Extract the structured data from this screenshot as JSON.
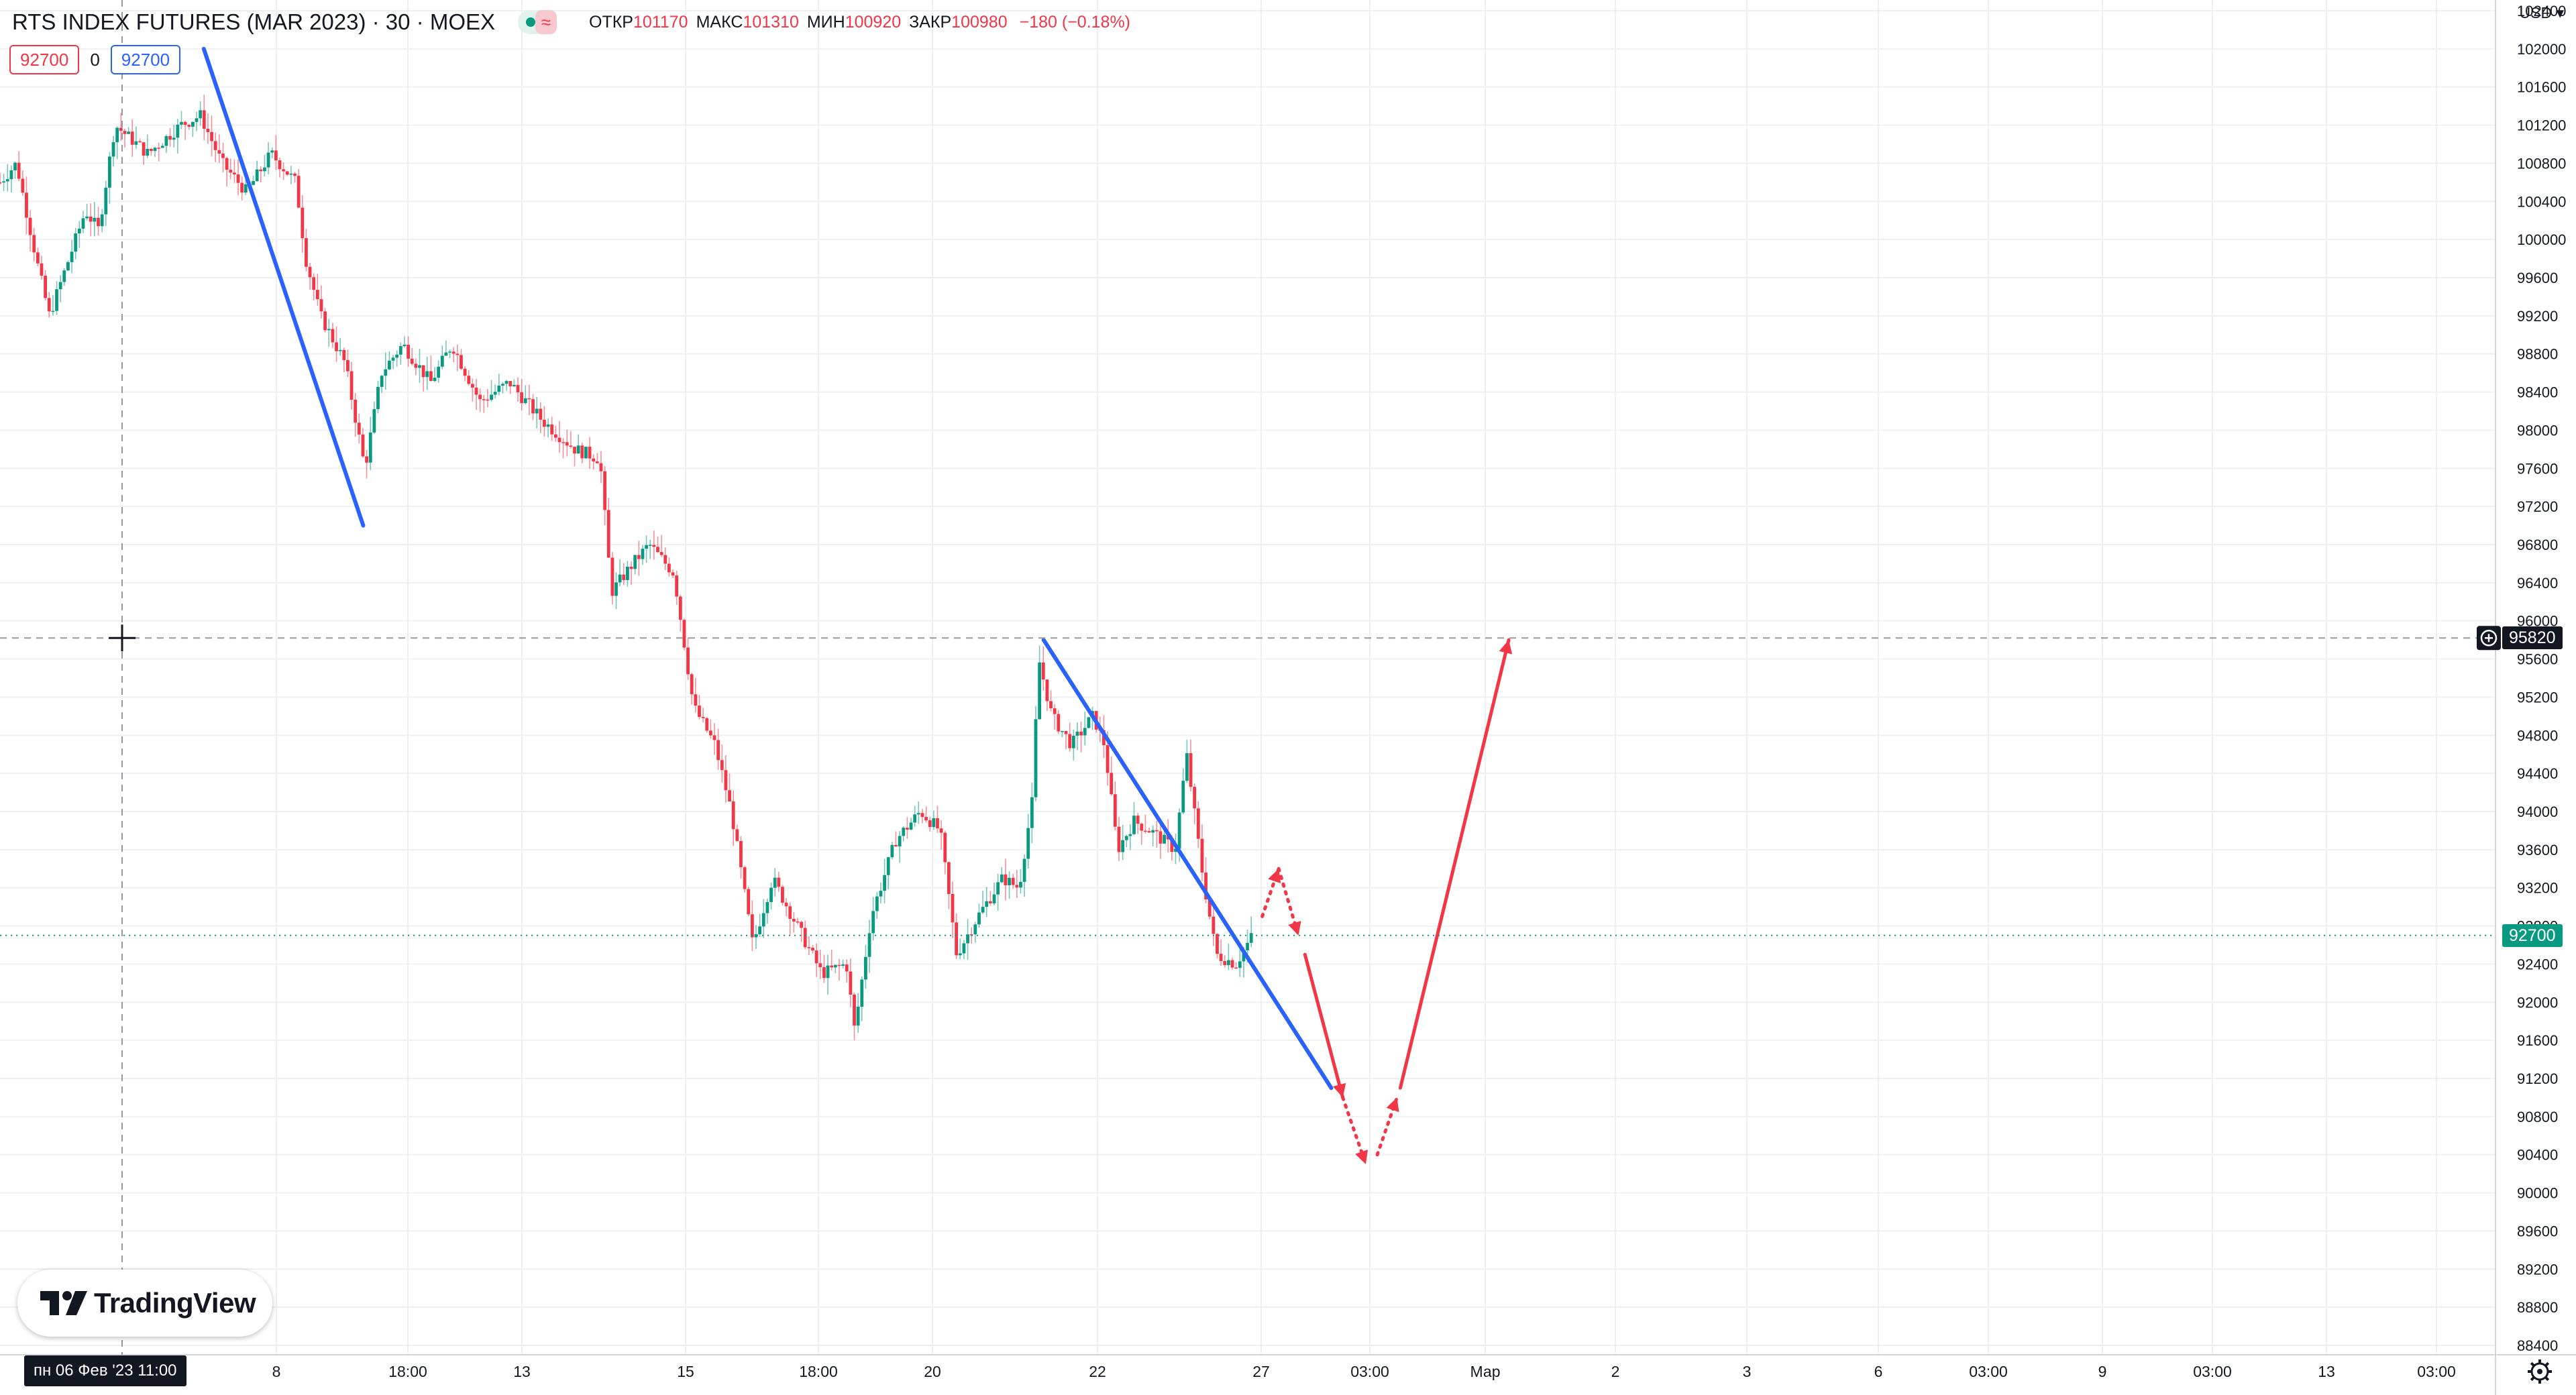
{
  "legend": {
    "symbol": "RTS INDEX FUTURES (MAR 2023) · 30 · MOEX",
    "wave_icon": "≈",
    "open_label": "ОТКР",
    "open": "101170",
    "high_label": "МАКС",
    "high": "101310",
    "low_label": "МИН",
    "low": "100920",
    "close_label": "ЗАКР",
    "close": "100980",
    "change": "−180 (−0.18%)"
  },
  "trade": {
    "sell": "92700",
    "spread": "0",
    "buy": "92700"
  },
  "price_axis": {
    "currency": "USD",
    "ticks": [
      "102400",
      "102000",
      "101600",
      "101200",
      "100800",
      "100400",
      "100000",
      "99600",
      "99200",
      "98800",
      "98400",
      "98000",
      "97600",
      "97200",
      "96800",
      "96400",
      "96000",
      "95600",
      "95200",
      "94800",
      "94400",
      "94000",
      "93600",
      "93200",
      "92800",
      "92400",
      "92000",
      "91600",
      "91200",
      "90800",
      "90400",
      "90000",
      "89600",
      "89200",
      "88800",
      "88400"
    ],
    "crosshair_price": "95820",
    "last_price": "92700"
  },
  "time_axis": {
    "ticks": [
      "пн 06 Фев '23   11:00",
      "8",
      "18:00",
      "13",
      "15",
      "18:00",
      "20",
      "22",
      "27",
      "03:00",
      "Мар",
      "2",
      "3",
      "6",
      "03:00",
      "9",
      "03:00",
      "13",
      "03:00"
    ]
  },
  "chart_data": {
    "type": "candlestick",
    "symbol": "RTS INDEX FUTURES (MAR 2023)",
    "timeframe": "30",
    "exchange": "MOEX",
    "currency": "USD",
    "ylim": [
      88400,
      102400
    ],
    "x_ticks": [
      "пн 06 Фев '23   11:00",
      "8",
      "18:00",
      "13",
      "15",
      "18:00",
      "20",
      "22",
      "27",
      "03:00",
      "Мар",
      "2",
      "3",
      "6",
      "03:00",
      "9",
      "03:00",
      "13",
      "03:00"
    ],
    "price_path": [
      {
        "t": 0,
        "price": 100600
      },
      {
        "t": 10,
        "price": 100800
      },
      {
        "t": 22,
        "price": 99800
      },
      {
        "t": 30,
        "price": 99200
      },
      {
        "t": 40,
        "price": 99700
      },
      {
        "t": 52,
        "price": 100300
      },
      {
        "t": 60,
        "price": 100100
      },
      {
        "t": 70,
        "price": 101200
      },
      {
        "t": 90,
        "price": 100900
      },
      {
        "t": 110,
        "price": 101200
      },
      {
        "t": 122,
        "price": 101300
      },
      {
        "t": 135,
        "price": 100800
      },
      {
        "t": 150,
        "price": 100500
      },
      {
        "t": 165,
        "price": 100900
      },
      {
        "t": 180,
        "price": 100600
      },
      {
        "t": 186,
        "price": 99800
      },
      {
        "t": 195,
        "price": 99200
      },
      {
        "t": 210,
        "price": 98700
      },
      {
        "t": 222,
        "price": 97600
      },
      {
        "t": 232,
        "price": 98600
      },
      {
        "t": 245,
        "price": 98900
      },
      {
        "t": 262,
        "price": 98500
      },
      {
        "t": 275,
        "price": 98900
      },
      {
        "t": 292,
        "price": 98300
      },
      {
        "t": 310,
        "price": 98500
      },
      {
        "t": 330,
        "price": 98100
      },
      {
        "t": 350,
        "price": 97800
      },
      {
        "t": 365,
        "price": 97700
      },
      {
        "t": 372,
        "price": 96300
      },
      {
        "t": 385,
        "price": 96600
      },
      {
        "t": 395,
        "price": 96800
      },
      {
        "t": 410,
        "price": 96500
      },
      {
        "t": 422,
        "price": 95100
      },
      {
        "t": 435,
        "price": 94700
      },
      {
        "t": 445,
        "price": 94000
      },
      {
        "t": 458,
        "price": 92600
      },
      {
        "t": 470,
        "price": 93300
      },
      {
        "t": 485,
        "price": 92800
      },
      {
        "t": 500,
        "price": 92300
      },
      {
        "t": 515,
        "price": 92400
      },
      {
        "t": 520,
        "price": 91700
      },
      {
        "t": 530,
        "price": 92900
      },
      {
        "t": 545,
        "price": 93700
      },
      {
        "t": 560,
        "price": 94000
      },
      {
        "t": 572,
        "price": 93800
      },
      {
        "t": 582,
        "price": 92500
      },
      {
        "t": 595,
        "price": 92900
      },
      {
        "t": 610,
        "price": 93300
      },
      {
        "t": 620,
        "price": 93200
      },
      {
        "t": 628,
        "price": 94100
      },
      {
        "t": 632,
        "price": 95600
      },
      {
        "t": 640,
        "price": 95000
      },
      {
        "t": 652,
        "price": 94700
      },
      {
        "t": 665,
        "price": 95000
      },
      {
        "t": 672,
        "price": 94700
      },
      {
        "t": 680,
        "price": 93600
      },
      {
        "t": 690,
        "price": 93900
      },
      {
        "t": 700,
        "price": 93800
      },
      {
        "t": 715,
        "price": 93600
      },
      {
        "t": 722,
        "price": 94600
      },
      {
        "t": 732,
        "price": 93300
      },
      {
        "t": 740,
        "price": 92500
      },
      {
        "t": 752,
        "price": 92400
      },
      {
        "t": 762,
        "price": 92700
      }
    ],
    "drawings": {
      "trendlines": [
        {
          "color": "#2962ff",
          "from": [
            124,
            102000
          ],
          "to": [
            221,
            97000
          ]
        },
        {
          "color": "#2962ff",
          "from": [
            635,
            95800
          ],
          "to": [
            810,
            91100
          ]
        }
      ],
      "forecast": [
        {
          "style": "dotted",
          "color": "#f23645",
          "from": [
            768,
            92900
          ],
          "to": [
            778,
            93400
          ]
        },
        {
          "style": "dotted",
          "color": "#f23645",
          "from": [
            778,
            93400
          ],
          "to": [
            790,
            92700
          ]
        },
        {
          "style": "solid",
          "color": "#f23645",
          "from": [
            794,
            92500
          ],
          "to": [
            817,
            91000
          ]
        },
        {
          "style": "dotted",
          "color": "#f23645",
          "from": [
            817,
            91000
          ],
          "to": [
            831,
            90300
          ]
        },
        {
          "style": "dotted",
          "color": "#f23645",
          "from": [
            838,
            90400
          ],
          "to": [
            850,
            91000
          ]
        },
        {
          "style": "solid",
          "color": "#f23645",
          "from": [
            852,
            91100
          ],
          "to": [
            918,
            95800
          ]
        }
      ]
    },
    "colors": {
      "up": "#089981",
      "down": "#f23645",
      "trendline": "#2962ff",
      "forecast": "#f23645"
    }
  },
  "branding": {
    "name": "TradingView"
  },
  "icons": [
    "plus-circle-icon",
    "gear-icon",
    "crosshair-icon",
    "tradingview-logo-icon",
    "chevron-down-icon"
  ]
}
